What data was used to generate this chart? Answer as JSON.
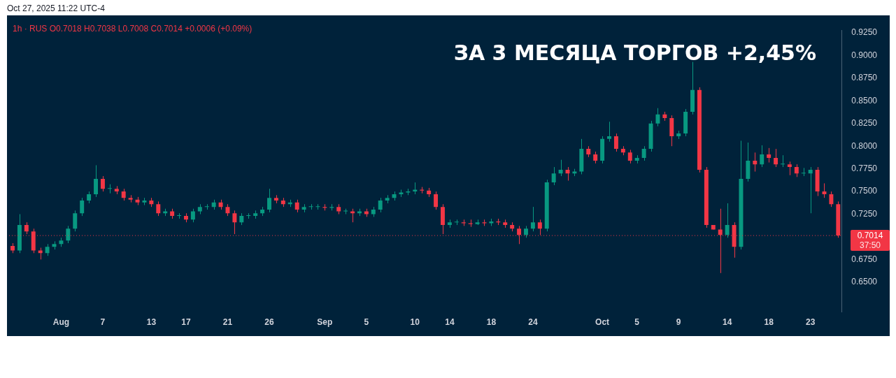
{
  "chart_data": {
    "type": "candlestick",
    "title": "ЗА 3 МЕСЯЦА ТОРГОВ +2,45%",
    "subtitle": "Oct 27, 2025 11:22 UTC-4",
    "categories": [
      null,
      null,
      null,
      null,
      null,
      null,
      null,
      "Aug",
      null,
      null,
      null,
      null,
      null,
      "7",
      null,
      null,
      null,
      null,
      null,
      null,
      "13",
      null,
      null,
      null,
      null,
      "17",
      null,
      null,
      null,
      null,
      null,
      "21",
      null,
      null,
      null,
      null,
      null,
      "26",
      null,
      null,
      null,
      null,
      null,
      null,
      null,
      "Sep",
      null,
      null,
      null,
      null,
      null,
      "5",
      null,
      null,
      null,
      null,
      null,
      null,
      "10",
      null,
      null,
      null,
      null,
      "14",
      null,
      null,
      null,
      null,
      null,
      "18",
      null,
      null,
      null,
      null,
      null,
      "24",
      null,
      null,
      null,
      null,
      null,
      null,
      null,
      null,
      null,
      "Oct",
      null,
      null,
      null,
      null,
      "5",
      null,
      null,
      null,
      null,
      null,
      "9",
      null,
      null,
      null,
      null,
      null,
      null,
      "14",
      null,
      null,
      null,
      null,
      null,
      "18",
      null,
      null,
      null,
      null,
      null,
      "23",
      null,
      null,
      null,
      null
    ],
    "ohlc": [
      [
        0.69,
        0.693,
        0.682,
        0.685
      ],
      [
        0.685,
        0.725,
        0.682,
        0.713
      ],
      [
        0.713,
        0.716,
        0.703,
        0.706
      ],
      [
        0.706,
        0.709,
        0.682,
        0.685
      ],
      [
        0.685,
        0.688,
        0.675,
        0.682
      ],
      [
        0.682,
        0.692,
        0.679,
        0.689
      ],
      [
        0.689,
        0.695,
        0.686,
        0.692
      ],
      [
        0.692,
        0.699,
        0.689,
        0.696
      ],
      [
        0.696,
        0.712,
        0.693,
        0.709
      ],
      [
        0.709,
        0.729,
        0.706,
        0.726
      ],
      [
        0.726,
        0.743,
        0.723,
        0.74
      ],
      [
        0.74,
        0.75,
        0.737,
        0.747
      ],
      [
        0.747,
        0.779,
        0.744,
        0.764
      ],
      [
        0.764,
        0.767,
        0.75,
        0.753
      ],
      [
        0.753,
        0.758,
        0.748,
        0.753
      ],
      [
        0.753,
        0.756,
        0.747,
        0.75
      ],
      [
        0.75,
        0.753,
        0.74,
        0.743
      ],
      [
        0.743,
        0.746,
        0.738,
        0.741
      ],
      [
        0.741,
        0.744,
        0.735,
        0.738
      ],
      [
        0.738,
        0.743,
        0.735,
        0.74
      ],
      [
        0.74,
        0.743,
        0.733,
        0.736
      ],
      [
        0.736,
        0.739,
        0.723,
        0.726
      ],
      [
        0.726,
        0.731,
        0.723,
        0.728
      ],
      [
        0.728,
        0.731,
        0.72,
        0.723
      ],
      [
        0.723,
        0.726,
        0.72,
        0.723
      ],
      [
        0.723,
        0.726,
        0.716,
        0.719
      ],
      [
        0.719,
        0.731,
        0.716,
        0.728
      ],
      [
        0.728,
        0.736,
        0.725,
        0.733
      ],
      [
        0.733,
        0.736,
        0.73,
        0.733
      ],
      [
        0.733,
        0.741,
        0.73,
        0.738
      ],
      [
        0.738,
        0.741,
        0.73,
        0.733
      ],
      [
        0.733,
        0.736,
        0.723,
        0.726
      ],
      [
        0.726,
        0.729,
        0.703,
        0.716
      ],
      [
        0.716,
        0.726,
        0.713,
        0.723
      ],
      [
        0.723,
        0.726,
        0.72,
        0.723
      ],
      [
        0.723,
        0.729,
        0.72,
        0.726
      ],
      [
        0.726,
        0.733,
        0.723,
        0.73
      ],
      [
        0.73,
        0.753,
        0.727,
        0.743
      ],
      [
        0.743,
        0.746,
        0.737,
        0.74
      ],
      [
        0.74,
        0.743,
        0.733,
        0.736
      ],
      [
        0.736,
        0.741,
        0.733,
        0.738
      ],
      [
        0.738,
        0.741,
        0.727,
        0.73
      ],
      [
        0.73,
        0.736,
        0.727,
        0.733
      ],
      [
        0.733,
        0.736,
        0.73,
        0.733
      ],
      [
        0.733,
        0.736,
        0.73,
        0.733
      ],
      [
        0.733,
        0.736,
        0.729,
        0.732
      ],
      [
        0.732,
        0.736,
        0.729,
        0.733
      ],
      [
        0.733,
        0.736,
        0.725,
        0.728
      ],
      [
        0.728,
        0.731,
        0.725,
        0.728
      ],
      [
        0.728,
        0.731,
        0.716,
        0.726
      ],
      [
        0.726,
        0.731,
        0.723,
        0.728
      ],
      [
        0.728,
        0.731,
        0.722,
        0.725
      ],
      [
        0.725,
        0.733,
        0.722,
        0.73
      ],
      [
        0.73,
        0.743,
        0.727,
        0.74
      ],
      [
        0.74,
        0.746,
        0.737,
        0.743
      ],
      [
        0.743,
        0.75,
        0.74,
        0.747
      ],
      [
        0.747,
        0.752,
        0.744,
        0.749
      ],
      [
        0.749,
        0.753,
        0.746,
        0.75
      ],
      [
        0.75,
        0.76,
        0.747,
        0.752
      ],
      [
        0.752,
        0.755,
        0.748,
        0.751
      ],
      [
        0.751,
        0.754,
        0.744,
        0.747
      ],
      [
        0.747,
        0.75,
        0.73,
        0.733
      ],
      [
        0.733,
        0.736,
        0.703,
        0.713
      ],
      [
        0.713,
        0.719,
        0.71,
        0.716
      ],
      [
        0.716,
        0.719,
        0.713,
        0.716
      ],
      [
        0.716,
        0.719,
        0.712,
        0.715
      ],
      [
        0.715,
        0.719,
        0.711,
        0.714
      ],
      [
        0.714,
        0.719,
        0.713,
        0.716
      ],
      [
        0.716,
        0.719,
        0.712,
        0.715
      ],
      [
        0.715,
        0.72,
        0.712,
        0.717
      ],
      [
        0.717,
        0.72,
        0.713,
        0.716
      ],
      [
        0.716,
        0.719,
        0.71,
        0.713
      ],
      [
        0.713,
        0.716,
        0.706,
        0.709
      ],
      [
        0.709,
        0.712,
        0.692,
        0.702
      ],
      [
        0.702,
        0.712,
        0.699,
        0.709
      ],
      [
        0.709,
        0.733,
        0.706,
        0.716
      ],
      [
        0.716,
        0.719,
        0.702,
        0.709
      ],
      [
        0.709,
        0.763,
        0.706,
        0.76
      ],
      [
        0.76,
        0.777,
        0.757,
        0.77
      ],
      [
        0.77,
        0.785,
        0.767,
        0.774
      ],
      [
        0.774,
        0.777,
        0.762,
        0.77
      ],
      [
        0.77,
        0.775,
        0.767,
        0.772
      ],
      [
        0.772,
        0.808,
        0.769,
        0.797
      ],
      [
        0.797,
        0.8,
        0.788,
        0.791
      ],
      [
        0.791,
        0.794,
        0.781,
        0.784
      ],
      [
        0.784,
        0.811,
        0.781,
        0.808
      ],
      [
        0.808,
        0.827,
        0.805,
        0.811
      ],
      [
        0.811,
        0.814,
        0.794,
        0.797
      ],
      [
        0.797,
        0.8,
        0.79,
        0.793
      ],
      [
        0.793,
        0.796,
        0.781,
        0.784
      ],
      [
        0.784,
        0.79,
        0.781,
        0.787
      ],
      [
        0.787,
        0.8,
        0.784,
        0.797
      ],
      [
        0.797,
        0.828,
        0.794,
        0.825
      ],
      [
        0.825,
        0.842,
        0.822,
        0.835
      ],
      [
        0.835,
        0.838,
        0.828,
        0.831
      ],
      [
        0.831,
        0.834,
        0.8,
        0.811
      ],
      [
        0.811,
        0.817,
        0.808,
        0.814
      ],
      [
        0.814,
        0.841,
        0.811,
        0.838
      ],
      [
        0.838,
        0.893,
        0.835,
        0.862
      ],
      [
        0.862,
        0.865,
        0.771,
        0.774
      ],
      [
        0.774,
        0.777,
        0.71,
        0.713
      ],
      [
        0.713,
        0.713,
        0.708,
        0.708
      ],
      [
        0.708,
        0.731,
        0.66,
        0.702
      ],
      [
        0.702,
        0.737,
        0.699,
        0.713
      ],
      [
        0.713,
        0.716,
        0.677,
        0.689
      ],
      [
        0.689,
        0.806,
        0.686,
        0.764
      ],
      [
        0.764,
        0.804,
        0.761,
        0.784
      ],
      [
        0.784,
        0.793,
        0.772,
        0.78
      ],
      [
        0.78,
        0.801,
        0.777,
        0.791
      ],
      [
        0.791,
        0.798,
        0.782,
        0.787
      ],
      [
        0.787,
        0.797,
        0.777,
        0.78
      ],
      [
        0.78,
        0.79,
        0.777,
        0.78
      ],
      [
        0.78,
        0.783,
        0.768,
        0.777
      ],
      [
        0.777,
        0.78,
        0.766,
        0.77
      ],
      [
        0.77,
        0.776,
        0.767,
        0.77
      ],
      [
        0.77,
        0.777,
        0.726,
        0.774
      ],
      [
        0.774,
        0.777,
        0.745,
        0.75
      ],
      [
        0.75,
        0.759,
        0.743,
        0.747
      ],
      [
        0.747,
        0.75,
        0.733,
        0.736
      ],
      [
        0.736,
        0.739,
        0.699,
        0.7014
      ]
    ],
    "ylim": [
      0.617,
      0.928
    ],
    "yticks": [
      {
        "value": 0.65,
        "label": "0.6500"
      },
      {
        "value": 0.675,
        "label": "0.6750"
      },
      {
        "value": 0.725,
        "label": "0.7250"
      },
      {
        "value": 0.75,
        "label": "0.7500"
      },
      {
        "value": 0.775,
        "label": "0.7750"
      },
      {
        "value": 0.8,
        "label": "0.8000"
      },
      {
        "value": 0.825,
        "label": "0.8250"
      },
      {
        "value": 0.85,
        "label": "0.8500"
      },
      {
        "value": 0.875,
        "label": "0.8750"
      },
      {
        "value": 0.9,
        "label": "0.9000"
      },
      {
        "value": 0.925,
        "label": "0.9250"
      }
    ],
    "grid": false,
    "ref_lines": [
      {
        "axis": "y",
        "value": 0.7014,
        "label": "0.7014",
        "color": "#f23645",
        "line_style": "dotted"
      }
    ],
    "annotations": [
      "1h · RUS  O0.7018  H0.7038  L0.7008  C0.7014  +0.0006 (+0.09%)",
      "37:50"
    ]
  }
}
